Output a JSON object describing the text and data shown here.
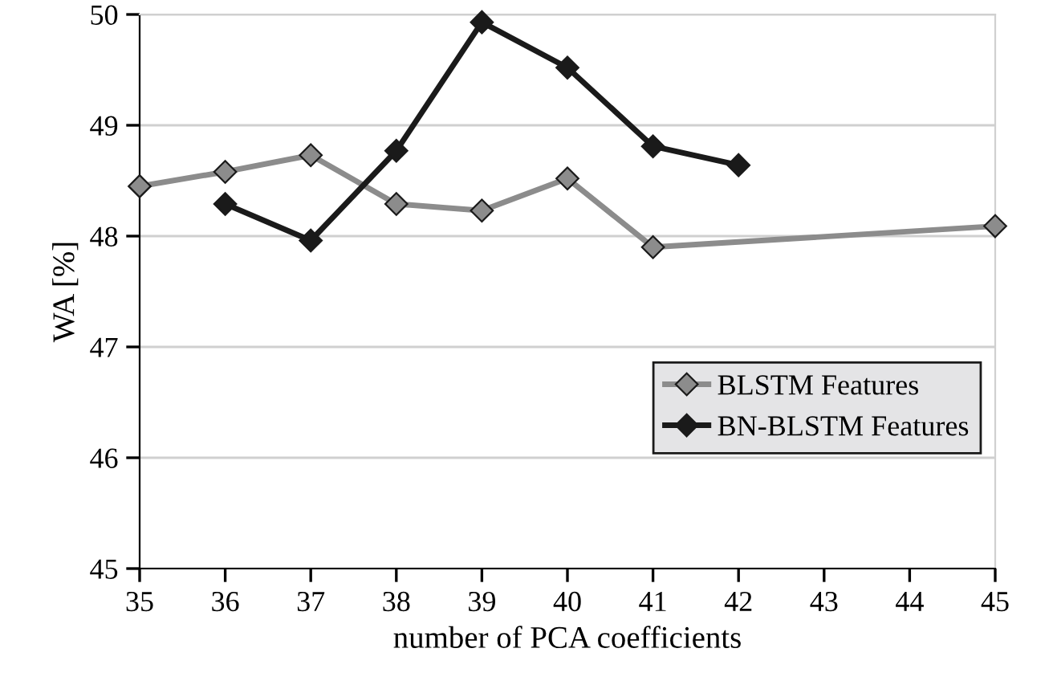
{
  "chart_data": {
    "type": "line",
    "xlabel": "number of PCA coefficients",
    "ylabel": "WA [%]",
    "xlim": [
      35,
      45
    ],
    "xticks": [
      35,
      36,
      37,
      38,
      39,
      40,
      41,
      42,
      43,
      44,
      45
    ],
    "ylim": [
      45,
      50
    ],
    "yticks": [
      45,
      46,
      47,
      48,
      49,
      50
    ],
    "grid": "y",
    "legend": "center right",
    "marker": "diamond",
    "line_style": "solid",
    "series": [
      {
        "name": "BLSTM Features",
        "color": "#8c8c8c",
        "x": [
          35,
          36,
          37,
          38,
          39,
          40,
          41,
          45
        ],
        "values": [
          48.45,
          48.58,
          48.73,
          48.29,
          48.23,
          48.52,
          47.9,
          48.09
        ]
      },
      {
        "name": "BN-BLSTM Features",
        "color": "#1a1a1a",
        "x": [
          36,
          37,
          38,
          39,
          40,
          41,
          42
        ],
        "values": [
          48.29,
          47.96,
          48.77,
          49.93,
          49.52,
          48.81,
          48.64
        ]
      }
    ]
  }
}
